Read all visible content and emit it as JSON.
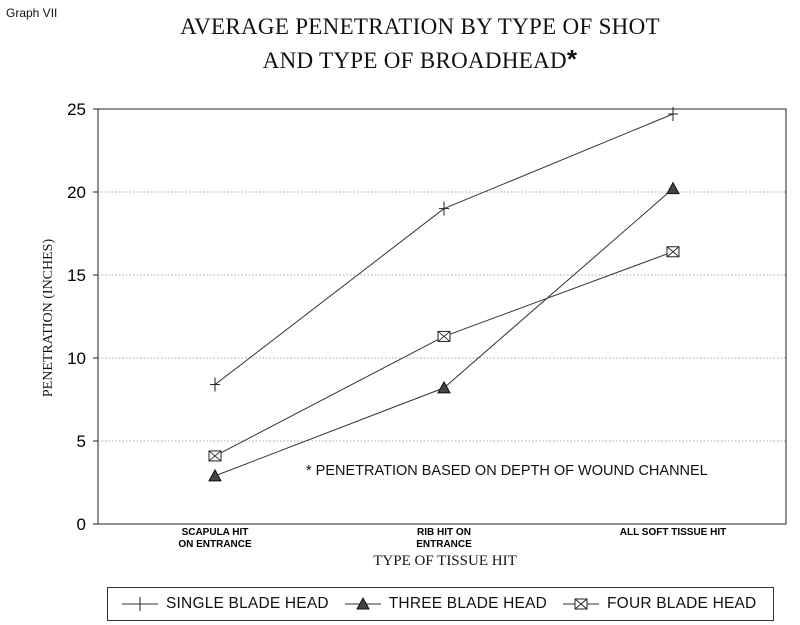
{
  "graph_label": "Graph VII",
  "title_line1": "AVERAGE PENETRATION BY TYPE OF SHOT",
  "title_line2": "AND TYPE OF BROADHEAD",
  "title_star": "*",
  "note": "* PENETRATION BASED ON DEPTH OF WOUND CHANNEL",
  "chart_data": {
    "type": "line",
    "title": "AVERAGE PENETRATION BY TYPE OF SHOT AND TYPE OF BROADHEAD *",
    "xlabel": "TYPE OF TISSUE HIT",
    "ylabel": "PENETRATION (INCHES)",
    "categories": [
      [
        "SCAPULA HIT",
        "ON ENTRANCE"
      ],
      [
        "RIB HIT ON",
        "ENTRANCE"
      ],
      [
        "ALL SOFT TISSUE HIT"
      ]
    ],
    "ylim": [
      0,
      25
    ],
    "yticks": [
      0,
      5,
      10,
      15,
      20,
      25
    ],
    "grid": true,
    "legend_position": "bottom",
    "series": [
      {
        "name": "SINGLE BLADE HEAD",
        "marker": "plus",
        "values": [
          8.4,
          19.0,
          24.7
        ]
      },
      {
        "name": "THREE BLADE HEAD",
        "marker": "triangle",
        "values": [
          2.9,
          8.2,
          20.2
        ]
      },
      {
        "name": "FOUR BLADE HEAD",
        "marker": "boxed-x",
        "values": [
          4.1,
          11.3,
          16.4
        ]
      }
    ]
  }
}
